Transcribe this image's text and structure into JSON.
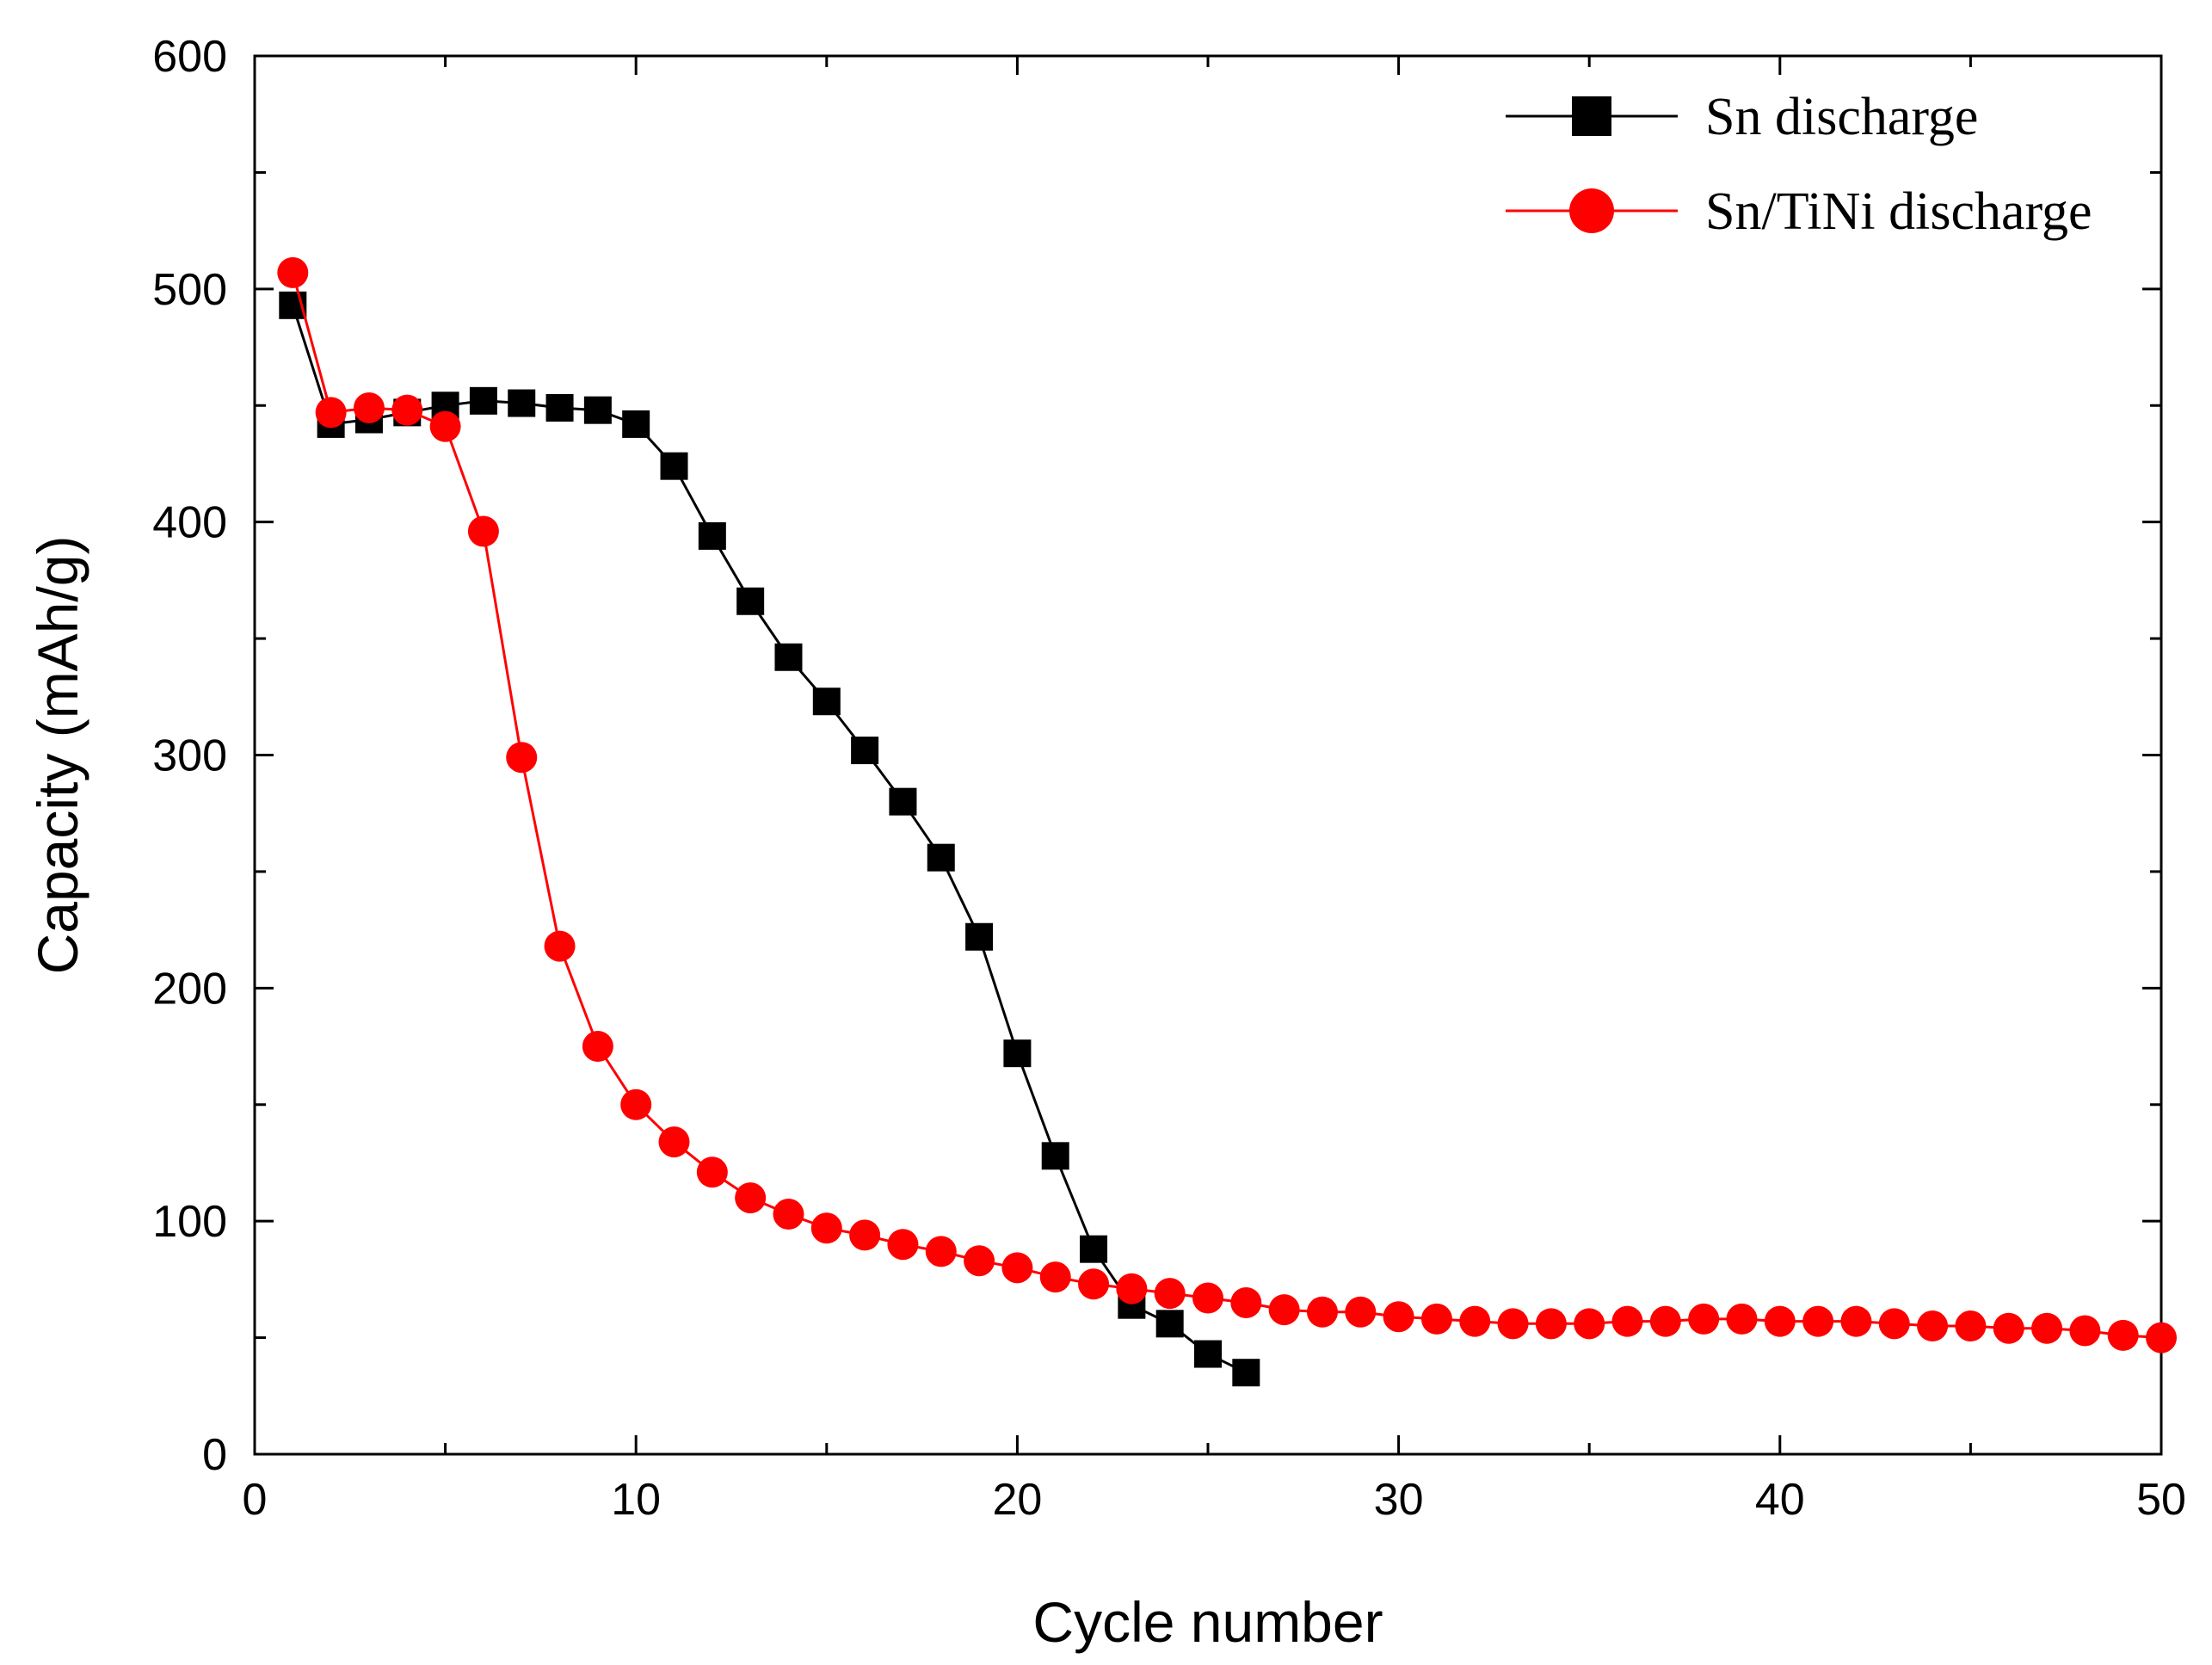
{
  "chart_data": {
    "type": "line",
    "title": "",
    "xlabel": "Cycle number",
    "ylabel": "Capacity (mAh/g)",
    "xlim": [
      0,
      50
    ],
    "ylim": [
      0,
      600
    ],
    "xticks": [
      0,
      10,
      20,
      30,
      40,
      50
    ],
    "yticks": [
      0,
      100,
      200,
      300,
      400,
      500,
      600
    ],
    "grid": false,
    "legend_position": "top-right",
    "series": [
      {
        "name": "Sn discharge",
        "color": "#000000",
        "marker": "square",
        "x": [
          1,
          2,
          3,
          4,
          5,
          6,
          7,
          8,
          9,
          10,
          11,
          12,
          13,
          14,
          15,
          16,
          17,
          18,
          19,
          20,
          21,
          22,
          23,
          24,
          25,
          26
        ],
        "values": [
          493,
          442,
          444,
          447,
          450,
          452,
          451,
          449,
          448,
          442,
          424,
          394,
          366,
          342,
          323,
          302,
          280,
          256,
          222,
          172,
          128,
          88,
          64,
          56,
          43,
          35
        ]
      },
      {
        "name": "Sn/TiNi discharge",
        "color": "#ff0000",
        "marker": "circle",
        "x": [
          1,
          2,
          3,
          4,
          5,
          6,
          7,
          8,
          9,
          10,
          11,
          12,
          13,
          14,
          15,
          16,
          17,
          18,
          19,
          20,
          21,
          22,
          23,
          24,
          25,
          26,
          27,
          28,
          29,
          30,
          31,
          32,
          33,
          34,
          35,
          36,
          37,
          38,
          39,
          40,
          41,
          42,
          43,
          44,
          45,
          46,
          47,
          48,
          49,
          50
        ],
        "values": [
          507,
          447,
          449,
          448,
          441,
          396,
          299,
          218,
          175,
          150,
          134,
          121,
          110,
          103,
          97,
          94,
          90,
          87,
          83,
          80,
          76,
          73,
          71,
          69,
          67,
          65,
          62,
          61,
          61,
          59,
          58,
          57,
          56,
          56,
          56,
          57,
          57,
          58,
          58,
          57,
          57,
          57,
          56,
          55,
          55,
          54,
          54,
          53,
          51,
          50
        ]
      }
    ]
  }
}
